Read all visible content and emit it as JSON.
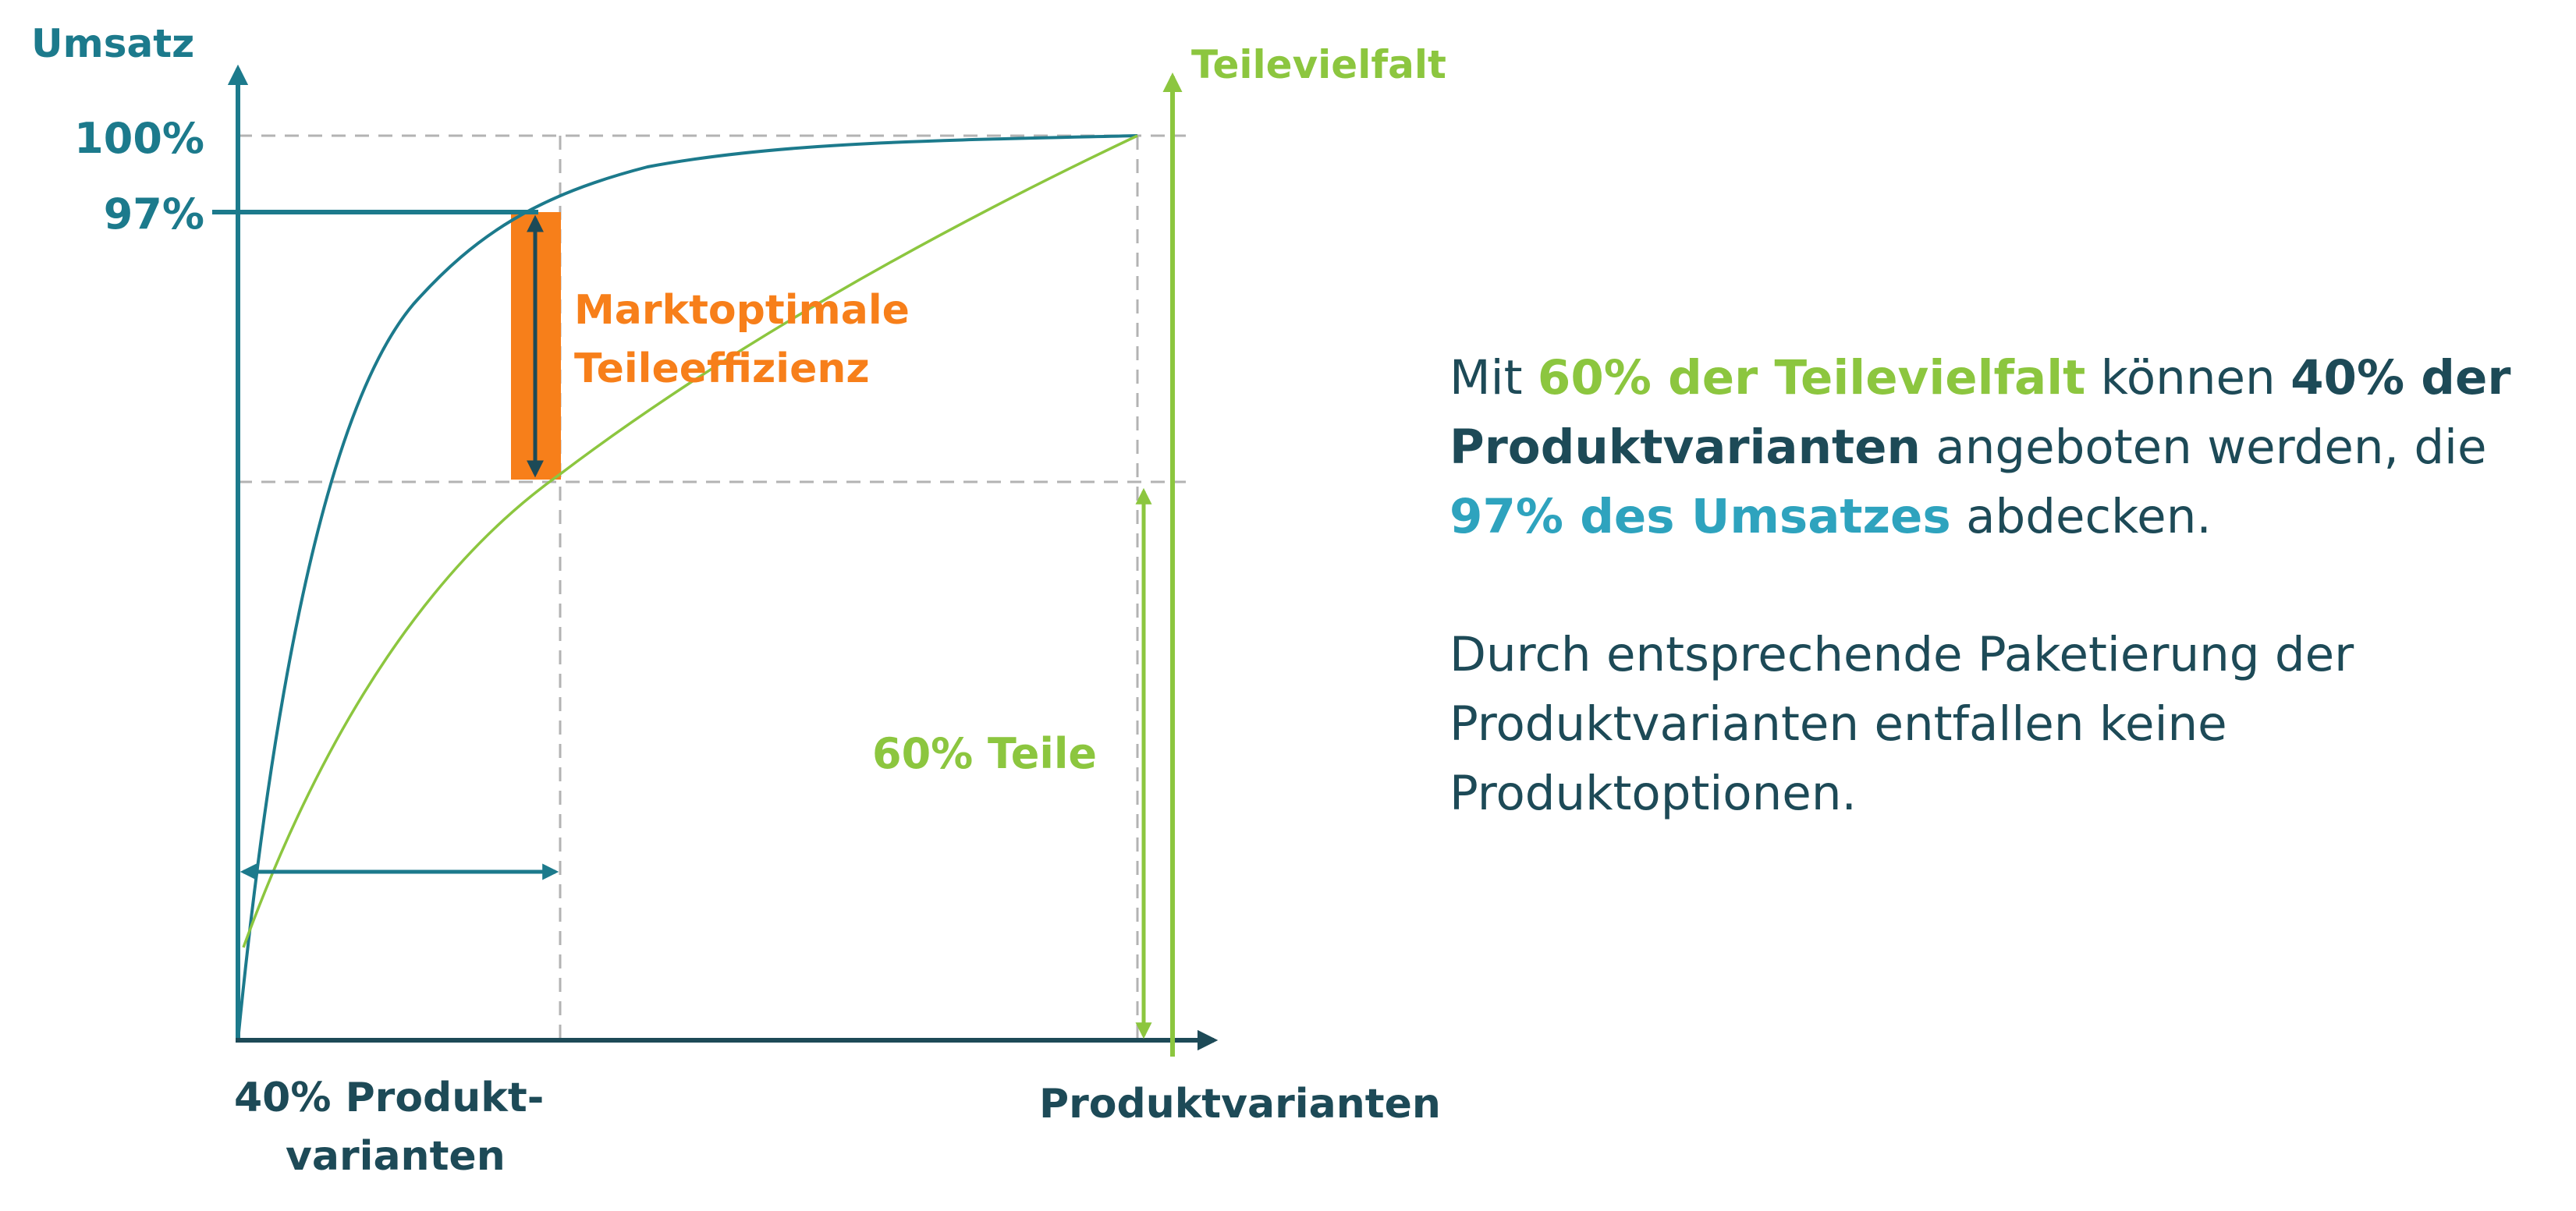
{
  "colors": {
    "teal": "#1c7a8c",
    "green": "#8cc63f",
    "orange": "#f77f1a",
    "dark": "#1d4a57",
    "light_teal": "#2ea3be",
    "grid": "#b3b3b3"
  },
  "diagram": {
    "y_axis_label": "Umsatz",
    "y_tick_100": "100%",
    "y_tick_97": "97%",
    "right_axis_label": "Teilevielfalt",
    "x_axis_label": "Produktvarianten",
    "x_mark_label_line1": "40% Produkt-",
    "x_mark_label_line2": "varianten",
    "efficiency_label_line1": "Marktoptimale",
    "efficiency_label_line2": "Teileeffizienz",
    "parts_label": "60% Teile"
  },
  "side_text": {
    "p1_t1": "Mit ",
    "p1_h1": "60% der Teilevielfalt",
    "p1_t2": " können ",
    "p1_h2": "40% der Produktvarianten",
    "p1_t3": " angeboten werden, die ",
    "p1_h3": "97% des Umsatzes",
    "p1_t4": " abdecken.",
    "p2": "Durch entsprechende Paketierung der Produktvarianten entfallen keine Produktoptionen."
  }
}
